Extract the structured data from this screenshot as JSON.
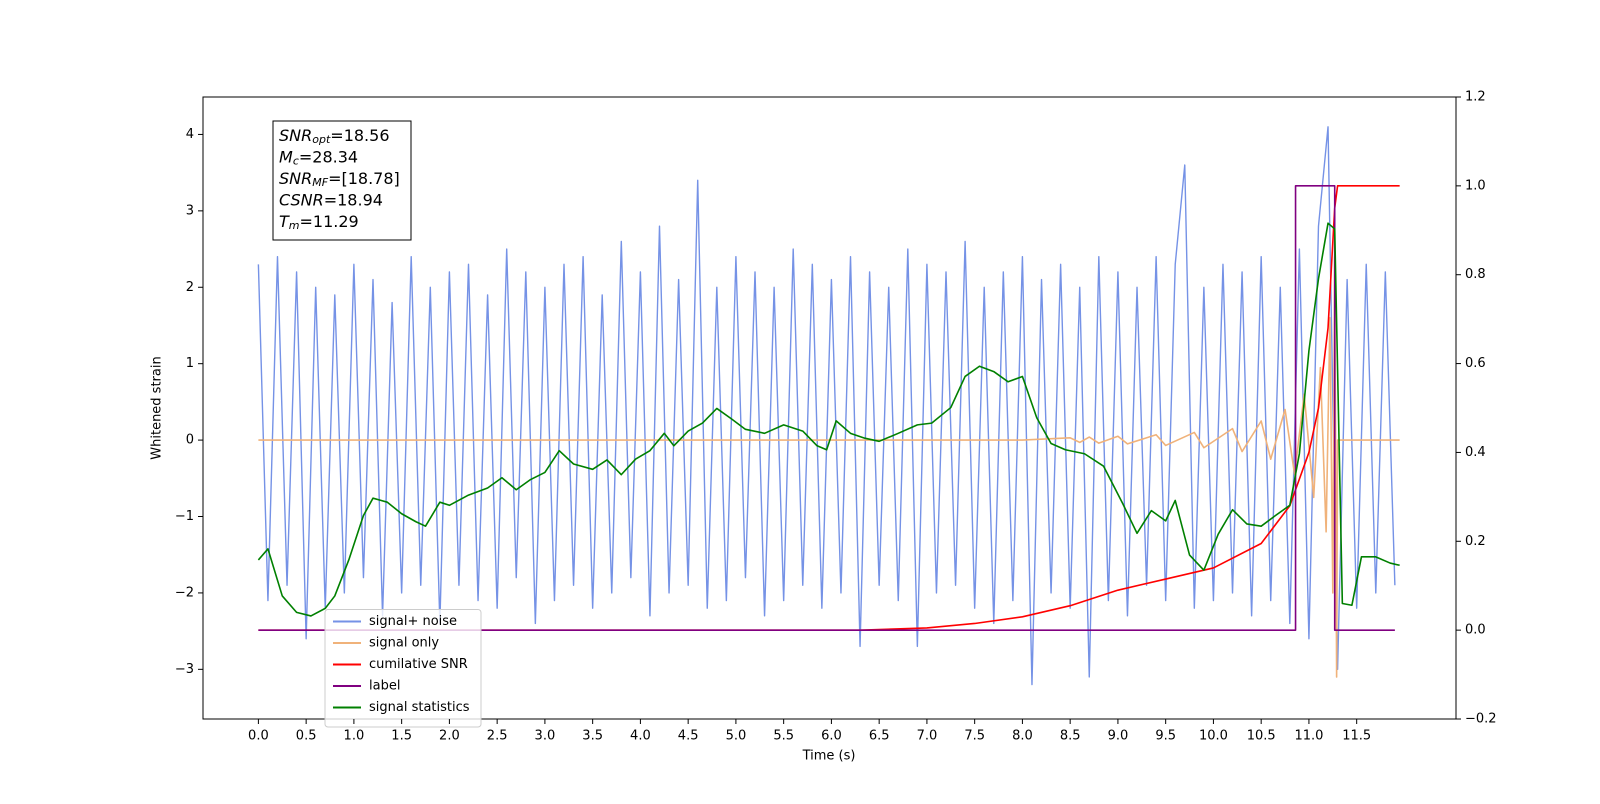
{
  "chart_data": {
    "type": "line",
    "xlabel": "Time (s)",
    "ylabel": "Whitened strain",
    "xlim": [
      -0.58,
      12.54
    ],
    "ylim": [
      -3.65,
      4.49
    ],
    "y2lim": [
      -0.2,
      1.2
    ],
    "xticks": [
      {
        "value": 0,
        "label": "0.0"
      },
      0.5,
      {
        "value": 1,
        "label": "1.0"
      },
      1.5,
      {
        "value": 2,
        "label": "2.0"
      },
      2.5,
      {
        "value": 3,
        "label": "3.0"
      },
      3.5,
      {
        "value": 4,
        "label": "4.0"
      },
      4.5,
      {
        "value": 5,
        "label": "5.0"
      },
      5.5,
      {
        "value": 6,
        "label": "6.0"
      },
      6.5,
      {
        "value": 7,
        "label": "7.0"
      },
      7.5,
      {
        "value": 8,
        "label": "8.0"
      },
      8.5,
      {
        "value": 9,
        "label": "9.0"
      },
      9.5,
      {
        "value": 10,
        "label": "10.0"
      },
      10.5,
      {
        "value": 11,
        "label": "11.0"
      },
      11.5
    ],
    "yticks": [
      {
        "value": -3,
        "label": "−3"
      },
      {
        "value": -2,
        "label": "−2"
      },
      {
        "value": -1,
        "label": "−1"
      },
      0,
      1,
      2,
      3,
      4
    ],
    "y2ticks": [
      {
        "value": -0.2,
        "label": "−0.2"
      },
      {
        "value": 0,
        "label": "0.0"
      },
      0.2,
      0.4,
      0.6,
      0.8,
      {
        "value": 1,
        "label": "1.0"
      },
      1.2
    ],
    "legend": "lower left",
    "annotations": [
      {
        "symbol": "SNR",
        "subscript": "opt",
        "text": "=18.56"
      },
      {
        "symbol": "M",
        "subscript": "c",
        "text": "=28.34"
      },
      {
        "symbol": "SNR",
        "subscript": "MF",
        "text": "=[18.78]"
      },
      {
        "symbol": "CSNR",
        "text": "=18.94"
      },
      {
        "symbol": "T",
        "subscript": "m",
        "text": "=11.29"
      }
    ],
    "series": [
      {
        "name": "signal+ noise",
        "color": "#7592e6",
        "x": [
          0.0,
          0.1,
          0.2,
          0.3,
          0.4,
          0.5,
          0.6,
          0.7,
          0.8,
          0.9,
          1.0,
          1.1,
          1.2,
          1.3,
          1.4,
          1.5,
          1.6,
          1.7,
          1.8,
          1.9,
          2.0,
          2.1,
          2.2,
          2.3,
          2.4,
          2.5,
          2.6,
          2.7,
          2.8,
          2.9,
          3.0,
          3.1,
          3.2,
          3.3,
          3.4,
          3.5,
          3.6,
          3.7,
          3.8,
          3.9,
          4.0,
          4.1,
          4.2,
          4.3,
          4.4,
          4.5,
          4.6,
          4.7,
          4.8,
          4.9,
          5.0,
          5.1,
          5.2,
          5.3,
          5.4,
          5.5,
          5.6,
          5.7,
          5.8,
          5.9,
          6.0,
          6.1,
          6.2,
          6.3,
          6.4,
          6.5,
          6.6,
          6.7,
          6.8,
          6.9,
          7.0,
          7.1,
          7.2,
          7.3,
          7.4,
          7.5,
          7.6,
          7.7,
          7.8,
          7.9,
          8.0,
          8.1,
          8.2,
          8.3,
          8.4,
          8.5,
          8.6,
          8.7,
          8.8,
          8.9,
          9.0,
          9.1,
          9.2,
          9.3,
          9.4,
          9.5,
          9.6,
          9.7,
          9.8,
          9.9,
          10.0,
          10.1,
          10.2,
          10.3,
          10.4,
          10.5,
          10.6,
          10.7,
          10.8,
          10.9,
          11.0,
          11.1,
          11.2,
          11.3,
          11.4,
          11.5,
          11.6,
          11.7,
          11.8,
          11.9
        ],
        "values": [
          2.3,
          -2.1,
          2.4,
          -1.9,
          2.2,
          -2.6,
          2.0,
          -2.2,
          1.9,
          -2.0,
          2.3,
          -1.8,
          2.1,
          -2.3,
          1.8,
          -2.0,
          2.4,
          -1.9,
          2.0,
          -2.4,
          2.2,
          -1.9,
          2.3,
          -2.1,
          1.9,
          -2.2,
          2.5,
          -1.8,
          2.2,
          -2.4,
          2.0,
          -2.1,
          2.3,
          -1.9,
          2.4,
          -2.2,
          1.9,
          -2.0,
          2.6,
          -1.8,
          2.2,
          -2.3,
          2.8,
          -2.0,
          2.1,
          -1.9,
          3.4,
          -2.2,
          2.0,
          -2.1,
          2.4,
          -1.8,
          2.2,
          -2.3,
          2.0,
          -2.1,
          2.5,
          -1.9,
          2.3,
          -2.2,
          2.1,
          -2.0,
          2.4,
          -2.7,
          2.2,
          -1.9,
          2.0,
          -2.1,
          2.5,
          -2.7,
          2.3,
          -2.0,
          2.2,
          -1.9,
          2.6,
          -2.2,
          2.0,
          -2.4,
          2.2,
          -2.1,
          2.4,
          -3.2,
          2.1,
          -2.0,
          2.3,
          -2.2,
          2.0,
          -3.1,
          2.4,
          -2.1,
          2.2,
          -2.3,
          2.0,
          -1.9,
          2.4,
          -2.1,
          2.3,
          3.6,
          -2.2,
          2.0,
          -2.1,
          2.3,
          -2.0,
          2.2,
          -2.3,
          2.4,
          -2.1,
          2.0,
          -2.4,
          2.5,
          -2.6,
          2.8,
          4.1,
          -3.0,
          2.1,
          -2.2,
          2.3,
          -2.0,
          2.2,
          -1.9
        ]
      },
      {
        "name": "signal only",
        "color": "#f0b27a",
        "x": [
          0.0,
          8.0,
          8.5,
          8.6,
          8.7,
          8.8,
          9.0,
          9.1,
          9.4,
          9.5,
          9.8,
          9.9,
          10.2,
          10.3,
          10.5,
          10.6,
          10.75,
          10.85,
          10.95,
          11.05,
          11.12,
          11.18,
          11.22,
          11.25,
          11.27,
          11.29,
          11.3,
          11.95
        ],
        "values": [
          0,
          0,
          0.03,
          -0.03,
          0.04,
          -0.04,
          0.05,
          -0.05,
          0.07,
          -0.07,
          0.1,
          -0.1,
          0.15,
          -0.15,
          0.25,
          -0.25,
          0.4,
          -0.45,
          0.6,
          -0.75,
          0.95,
          -1.2,
          1.6,
          -2.0,
          2.4,
          -3.1,
          0,
          0
        ]
      },
      {
        "name": "cumilative SNR",
        "color": "#ff0000",
        "axis": "y2",
        "x": [
          0.0,
          6.3,
          7.0,
          7.5,
          8.0,
          8.5,
          9.0,
          9.5,
          10.0,
          10.5,
          10.8,
          11.0,
          11.1,
          11.2,
          11.27,
          11.3,
          11.95
        ],
        "values": [
          0,
          0,
          0.005,
          0.015,
          0.03,
          0.055,
          0.09,
          0.115,
          0.14,
          0.195,
          0.28,
          0.4,
          0.5,
          0.68,
          0.95,
          1.0,
          1.0
        ]
      },
      {
        "name": "label",
        "color": "#800080",
        "axis": "y2",
        "x": [
          0.0,
          10.86,
          10.86,
          11.27,
          11.27,
          11.9
        ],
        "values": [
          0,
          0,
          1,
          1,
          0,
          0
        ]
      },
      {
        "name": "signal statistics",
        "color": "#008000",
        "axis": "y2",
        "x": [
          0.0,
          0.1,
          0.25,
          0.4,
          0.55,
          0.7,
          0.8,
          0.95,
          1.1,
          1.2,
          1.35,
          1.5,
          1.65,
          1.75,
          1.9,
          2.0,
          2.2,
          2.4,
          2.55,
          2.7,
          2.85,
          3.0,
          3.15,
          3.3,
          3.5,
          3.65,
          3.8,
          3.95,
          4.1,
          4.25,
          4.35,
          4.5,
          4.65,
          4.8,
          4.95,
          5.1,
          5.3,
          5.5,
          5.7,
          5.85,
          5.95,
          6.05,
          6.2,
          6.35,
          6.5,
          6.7,
          6.9,
          7.05,
          7.25,
          7.4,
          7.55,
          7.7,
          7.85,
          8.0,
          8.15,
          8.3,
          8.45,
          8.65,
          8.85,
          9.05,
          9.2,
          9.35,
          9.5,
          9.6,
          9.75,
          9.9,
          10.05,
          10.2,
          10.35,
          10.5,
          10.65,
          10.8,
          10.9,
          11.0,
          11.1,
          11.2,
          11.27,
          11.35,
          11.45,
          11.55,
          11.7,
          11.85,
          11.95
        ],
        "values": [
          0.158,
          0.183,
          0.077,
          0.04,
          0.032,
          0.049,
          0.077,
          0.16,
          0.258,
          0.297,
          0.288,
          0.262,
          0.244,
          0.234,
          0.288,
          0.281,
          0.304,
          0.32,
          0.343,
          0.316,
          0.339,
          0.355,
          0.404,
          0.374,
          0.362,
          0.383,
          0.35,
          0.385,
          0.404,
          0.443,
          0.415,
          0.448,
          0.466,
          0.499,
          0.476,
          0.452,
          0.443,
          0.462,
          0.448,
          0.415,
          0.406,
          0.471,
          0.443,
          0.432,
          0.425,
          0.443,
          0.462,
          0.466,
          0.501,
          0.571,
          0.594,
          0.582,
          0.559,
          0.571,
          0.478,
          0.42,
          0.406,
          0.397,
          0.369,
          0.285,
          0.218,
          0.269,
          0.246,
          0.292,
          0.169,
          0.135,
          0.216,
          0.271,
          0.239,
          0.234,
          0.258,
          0.281,
          0.397,
          0.629,
          0.791,
          0.916,
          0.903,
          0.06,
          0.056,
          0.165,
          0.165,
          0.151,
          0.146
        ]
      }
    ]
  }
}
